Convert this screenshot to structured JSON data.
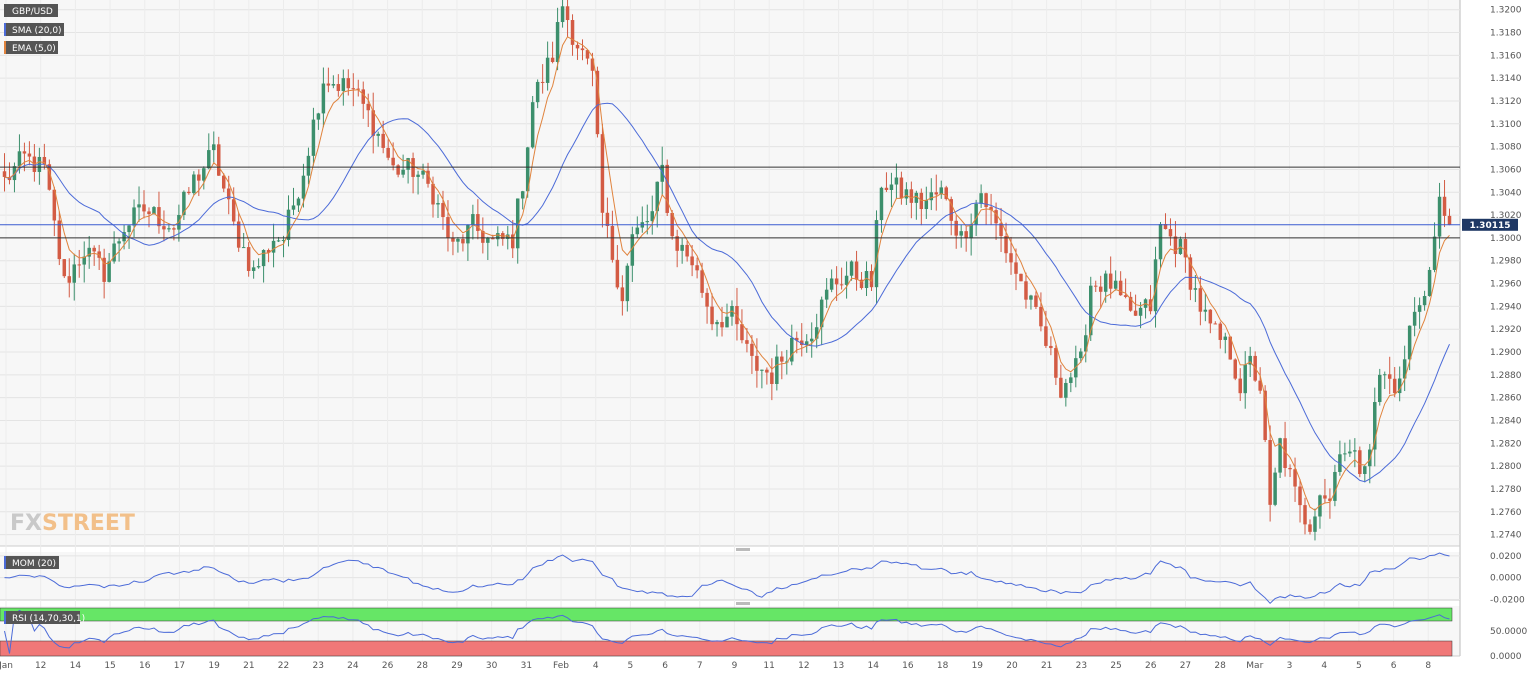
{
  "chart_data": {
    "type": "candlestick",
    "symbol": "GBP/USD",
    "indicators": {
      "sma_label": "SMA (20,0)",
      "ema_label": "EMA (5,0)",
      "mom_label": "MOM (20)",
      "rsi_label": "RSI (14,70,30,1)"
    },
    "price_axis": {
      "min": 1.273,
      "max": 1.3205,
      "ticks": [
        "1.3200",
        "1.3180",
        "1.3160",
        "1.3140",
        "1.3120",
        "1.3100",
        "1.3080",
        "1.3060",
        "1.3040",
        "1.3020",
        "1.3000",
        "1.2980",
        "1.2960",
        "1.2940",
        "1.2920",
        "1.2900",
        "1.2880",
        "1.2860",
        "1.2840",
        "1.2820",
        "1.2800",
        "1.2780",
        "1.2760",
        "1.2740"
      ]
    },
    "last_price": {
      "value": 1.30115,
      "label": "1.30115",
      "color": "#1f3864"
    },
    "horizontal_lines": [
      1.3062,
      1.3
    ],
    "mom_axis": {
      "min": -0.0205,
      "max": 0.0235,
      "ticks": [
        "0.0200",
        "0.0000",
        "-0.0200"
      ]
    },
    "rsi_axis": {
      "min": 0,
      "max": 100,
      "ticks": [
        "50.0000",
        "0.0000"
      ],
      "overbought": 70,
      "oversold": 30
    },
    "x_labels": [
      "Jan",
      "12",
      "14",
      "15",
      "16",
      "17",
      "19",
      "21",
      "22",
      "23",
      "24",
      "26",
      "28",
      "29",
      "30",
      "31",
      "Feb",
      "4",
      "5",
      "6",
      "7",
      "9",
      "11",
      "12",
      "13",
      "14",
      "16",
      "18",
      "19",
      "20",
      "21",
      "23",
      "25",
      "26",
      "27",
      "28",
      "Mar",
      "3",
      "4",
      "5",
      "6",
      "8"
    ],
    "waypoints": [
      [
        0,
        1.305
      ],
      [
        4,
        1.307
      ],
      [
        8,
        1.306
      ],
      [
        12,
        1.296
      ],
      [
        16,
        1.299
      ],
      [
        20,
        1.297
      ],
      [
        24,
        1.301
      ],
      [
        28,
        1.3025
      ],
      [
        34,
        1.301
      ],
      [
        38,
        1.305
      ],
      [
        42,
        1.3075
      ],
      [
        46,
        1.301
      ],
      [
        50,
        1.297
      ],
      [
        54,
        1.3
      ],
      [
        56,
        1.3
      ],
      [
        60,
        1.306
      ],
      [
        64,
        1.314
      ],
      [
        70,
        1.313
      ],
      [
        74,
        1.31
      ],
      [
        78,
        1.306
      ],
      [
        82,
        1.306
      ],
      [
        86,
        1.304
      ],
      [
        90,
        1.299
      ],
      [
        94,
        1.301
      ],
      [
        98,
        1.2995
      ],
      [
        102,
        1.3
      ],
      [
        104,
        1.305
      ],
      [
        106,
        1.312
      ],
      [
        110,
        1.316
      ],
      [
        112,
        1.3205
      ],
      [
        114,
        1.318
      ],
      [
        118,
        1.314
      ],
      [
        120,
        1.302
      ],
      [
        124,
        1.295
      ],
      [
        126,
        1.3
      ],
      [
        130,
        1.302
      ],
      [
        132,
        1.306
      ],
      [
        134,
        1.3
      ],
      [
        138,
        1.298
      ],
      [
        142,
        1.293
      ],
      [
        146,
        1.293
      ],
      [
        150,
        1.289
      ],
      [
        154,
        1.288
      ],
      [
        158,
        1.291
      ],
      [
        162,
        1.292
      ],
      [
        166,
        1.296
      ],
      [
        170,
        1.297
      ],
      [
        174,
        1.296
      ],
      [
        176,
        1.305
      ],
      [
        180,
        1.304
      ],
      [
        184,
        1.303
      ],
      [
        188,
        1.304
      ],
      [
        192,
        1.3
      ],
      [
        196,
        1.304
      ],
      [
        200,
        1.3
      ],
      [
        204,
        1.296
      ],
      [
        208,
        1.292
      ],
      [
        212,
        1.287
      ],
      [
        216,
        1.289
      ],
      [
        218,
        1.296
      ],
      [
        222,
        1.296
      ],
      [
        226,
        1.293
      ],
      [
        230,
        1.294
      ],
      [
        232,
        1.301
      ],
      [
        236,
        1.299
      ],
      [
        240,
        1.294
      ],
      [
        242,
        1.292
      ],
      [
        246,
        1.29
      ],
      [
        248,
        1.287
      ],
      [
        250,
        1.289
      ],
      [
        252,
        1.287
      ],
      [
        254,
        1.276
      ],
      [
        256,
        1.282
      ],
      [
        258,
        1.279
      ],
      [
        260,
        1.276
      ],
      [
        262,
        1.275
      ],
      [
        264,
        1.278
      ],
      [
        266,
        1.277
      ],
      [
        268,
        1.282
      ],
      [
        270,
        1.281
      ],
      [
        272,
        1.28
      ],
      [
        274,
        1.282
      ],
      [
        276,
        1.288
      ],
      [
        280,
        1.287
      ],
      [
        282,
        1.292
      ],
      [
        286,
        1.297
      ],
      [
        288,
        1.303
      ],
      [
        290,
        1.3012
      ]
    ],
    "candle_count": 291,
    "colors": {
      "bull": "#3c8f6c",
      "bear": "#d35b44",
      "sma": "#4c6bd8",
      "ema": "#e0833d",
      "mom": "#4c6bd8",
      "rsi": "#4c6bd8",
      "rsi_overbought_fill": "#66e666",
      "rsi_oversold_fill": "#f07878",
      "grid": "#e4e4e4",
      "badge": "#555555"
    }
  },
  "watermark": {
    "fx": "FX",
    "street": "STREET"
  }
}
